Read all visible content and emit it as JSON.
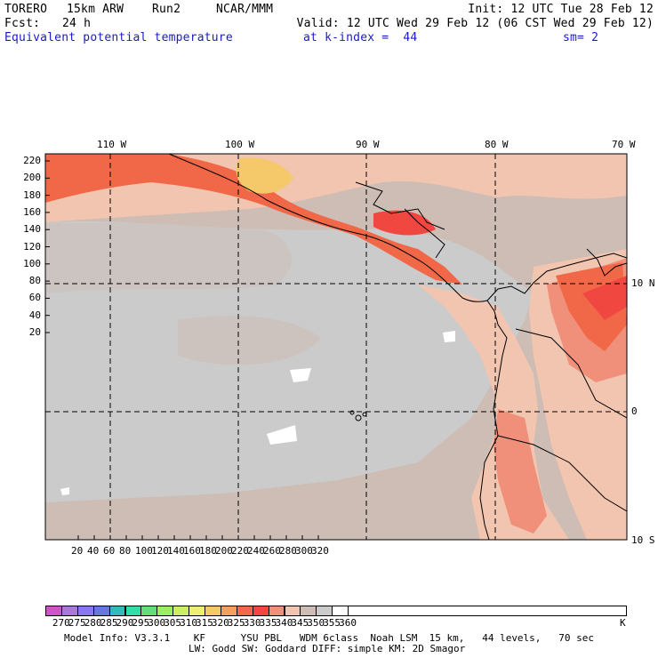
{
  "header": {
    "model": "TORERO",
    "resolution": "15km ARW",
    "run": "Run2",
    "org": "NCAR/MMM",
    "init": "Init: 12 UTC Tue 28 Feb 12",
    "fcst_label": "Fcst:",
    "fcst_value": "24 h",
    "valid": "Valid: 12 UTC Wed 29 Feb 12 (06 CST Wed 29 Feb 12)",
    "field": "Equivalent potential temperature",
    "level": "at k-index =  44",
    "smooth": "sm= 2"
  },
  "map": {
    "top_lon_labels": [
      "110 W",
      "100 W",
      "90 W",
      "80 W",
      "70 W"
    ],
    "right_lat_labels": [
      "10 N",
      "0",
      "10 S"
    ],
    "y_ticks": [
      "220",
      "200",
      "180",
      "160",
      "140",
      "120",
      "100",
      "80",
      "60",
      "40",
      "20"
    ],
    "x_ticks": [
      "20",
      "40",
      "60",
      "80",
      "100",
      "120",
      "140",
      "160",
      "180",
      "200",
      "220",
      "240",
      "260",
      "280",
      "300",
      "320"
    ]
  },
  "colorbar": {
    "labels": [
      "270",
      "275",
      "280",
      "285",
      "290",
      "295",
      "300",
      "305",
      "310",
      "315",
      "320",
      "325",
      "330",
      "335",
      "340",
      "345",
      "350",
      "355",
      "360"
    ],
    "unit": "K",
    "colors": [
      "#cc55cc",
      "#aa77dd",
      "#8877ee",
      "#6677dd",
      "#33bbbb",
      "#33ddaa",
      "#66dd77",
      "#99ee66",
      "#ccee66",
      "#eeee77",
      "#f5c869",
      "#f2a060",
      "#f06848",
      "#f04840",
      "#f0907a",
      "#f2c5b0",
      "#cdbdb5",
      "#cbcbcb",
      "#ffffff"
    ]
  },
  "footer": {
    "line1": "Model Info: V3.3.1    KF      YSU PBL   WDM 6class  Noah LSM  15 km,   44 levels,   70 sec",
    "line2": "LW: Godd SW: Goddard DIFF: simple KM: 2D Smagor"
  }
}
